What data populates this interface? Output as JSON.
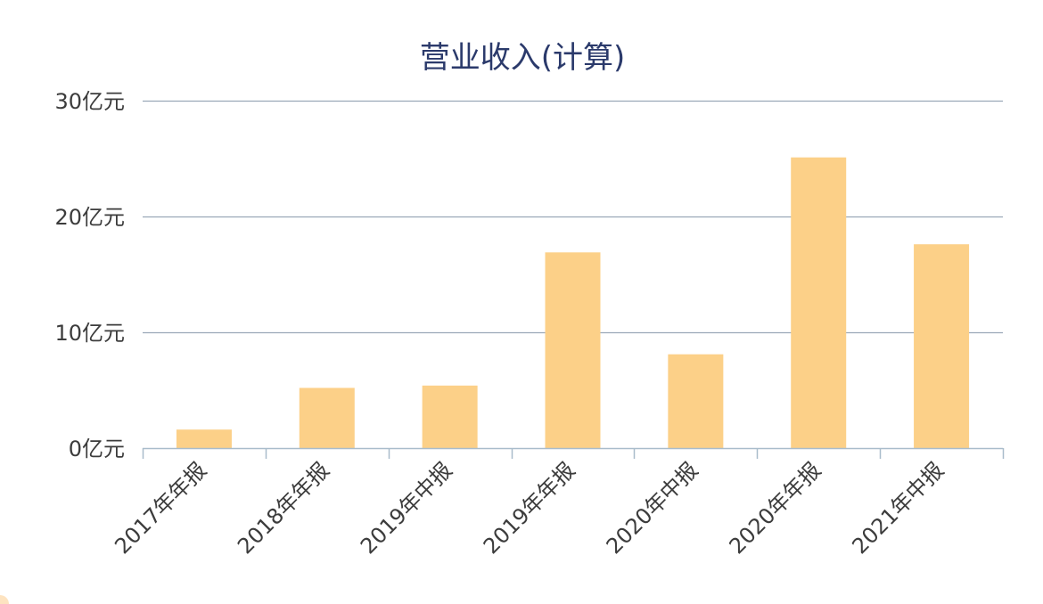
{
  "chart_data": {
    "type": "bar",
    "title": "营业收入(计算)",
    "xlabel": "",
    "ylabel": "",
    "categories": [
      "2017年年报",
      "2018年年报",
      "2019年中报",
      "2019年年报",
      "2020年中报",
      "2020年年报",
      "2021年中报"
    ],
    "series": [
      {
        "values": [
          1.6,
          5.2,
          5.4,
          16.9,
          8.1,
          25.1,
          17.6
        ],
        "color": "#fcd088"
      }
    ],
    "ylim": [
      0,
      30
    ],
    "yticks": [
      0,
      10,
      20,
      30
    ],
    "ytick_labels": [
      "0亿元",
      "10亿元",
      "20亿元",
      "30亿元"
    ],
    "grid": true,
    "legend": "none",
    "colors": {
      "title": "#2b3a6b",
      "grid": "#9aa8b8",
      "axis": "#a9bccb",
      "tick_text": "#3c3c3c"
    }
  }
}
